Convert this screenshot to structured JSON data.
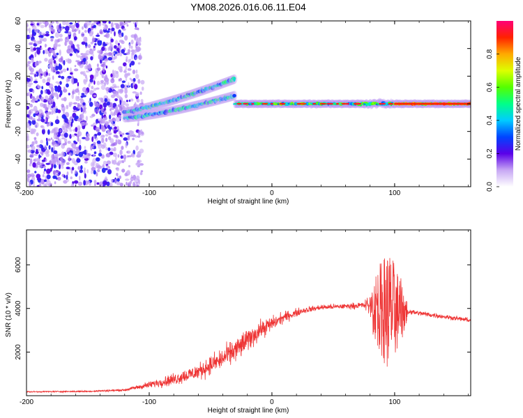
{
  "title": "YM08.2026.016.06.11.E04",
  "chart_data": [
    {
      "type": "heatmap",
      "xlabel": "Height of straight line (km)",
      "ylabel": "Frequency (Hz)",
      "xlim": [
        -200,
        162
      ],
      "ylim": [
        -60,
        60
      ],
      "xticks": [
        -200,
        -100,
        0,
        100
      ],
      "yticks": [
        -60,
        -40,
        -20,
        0,
        20,
        40,
        60
      ],
      "colorbar": {
        "label": "Normalized spectral amplitude",
        "range": [
          0,
          1
        ],
        "ticks": [
          0.0,
          0.2,
          0.4,
          0.6,
          0.8
        ],
        "tick_labels": [
          "0.0",
          "0.2",
          "0.4",
          "0.6",
          "0.8"
        ]
      },
      "features": [
        {
          "name": "noise-band",
          "x": [
            -200,
            -105
          ],
          "y": [
            -60,
            60
          ],
          "amplitude": 0.05
        },
        {
          "name": "rising-trace",
          "x": [
            -120,
            -30
          ],
          "freq_start": -8,
          "freq_end": 12,
          "amplitude": 0.4
        },
        {
          "name": "steady-trace",
          "x": [
            -30,
            162
          ],
          "freq": 0,
          "amplitude": 0.9
        }
      ]
    },
    {
      "type": "line",
      "xlabel": "Height of straight line (km)",
      "ylabel": "SNR (10 * v/v)",
      "xlim": [
        -200,
        162
      ],
      "ylim": [
        0,
        7600
      ],
      "xticks": [
        -200,
        -100,
        0,
        100
      ],
      "yticks": [
        2000,
        4000,
        6000
      ],
      "series_color": "#ee3333",
      "envelope": [
        {
          "x": -200,
          "mean": 180,
          "spread": 50
        },
        {
          "x": -150,
          "mean": 200,
          "spread": 60
        },
        {
          "x": -120,
          "mean": 260,
          "spread": 80
        },
        {
          "x": -100,
          "mean": 500,
          "spread": 250
        },
        {
          "x": -80,
          "mean": 750,
          "spread": 450
        },
        {
          "x": -60,
          "mean": 1100,
          "spread": 600
        },
        {
          "x": -40,
          "mean": 1700,
          "spread": 800
        },
        {
          "x": -25,
          "mean": 2300,
          "spread": 900
        },
        {
          "x": -10,
          "mean": 3000,
          "spread": 700
        },
        {
          "x": 10,
          "mean": 3600,
          "spread": 400
        },
        {
          "x": 25,
          "mean": 3900,
          "spread": 250
        },
        {
          "x": 40,
          "mean": 4050,
          "spread": 200
        },
        {
          "x": 60,
          "mean": 4100,
          "spread": 200
        },
        {
          "x": 75,
          "mean": 4150,
          "spread": 250
        },
        {
          "x": 85,
          "mean": 4100,
          "spread": 1700
        },
        {
          "x": 95,
          "mean": 3900,
          "spread": 2900
        },
        {
          "x": 105,
          "mean": 3900,
          "spread": 1500
        },
        {
          "x": 112,
          "mean": 3850,
          "spread": 200
        },
        {
          "x": 130,
          "mean": 3700,
          "spread": 180
        },
        {
          "x": 150,
          "mean": 3550,
          "spread": 170
        },
        {
          "x": 162,
          "mean": 3450,
          "spread": 160
        }
      ]
    }
  ]
}
